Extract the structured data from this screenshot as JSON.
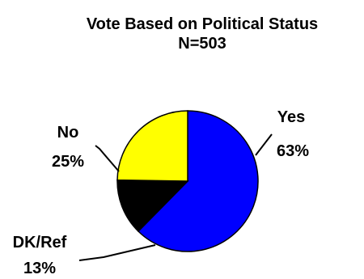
{
  "chart_data": {
    "type": "pie",
    "title": "Vote Based on Political Status",
    "subtitle": "N=503",
    "slices": [
      {
        "label": "Yes",
        "value": 63,
        "value_label": "63%",
        "color": "#0000ff"
      },
      {
        "label": "DK/Ref",
        "value": 13,
        "value_label": "13%",
        "color": "#000000"
      },
      {
        "label": "No",
        "value": 25,
        "value_label": "25%",
        "color": "#ffff00"
      }
    ]
  }
}
